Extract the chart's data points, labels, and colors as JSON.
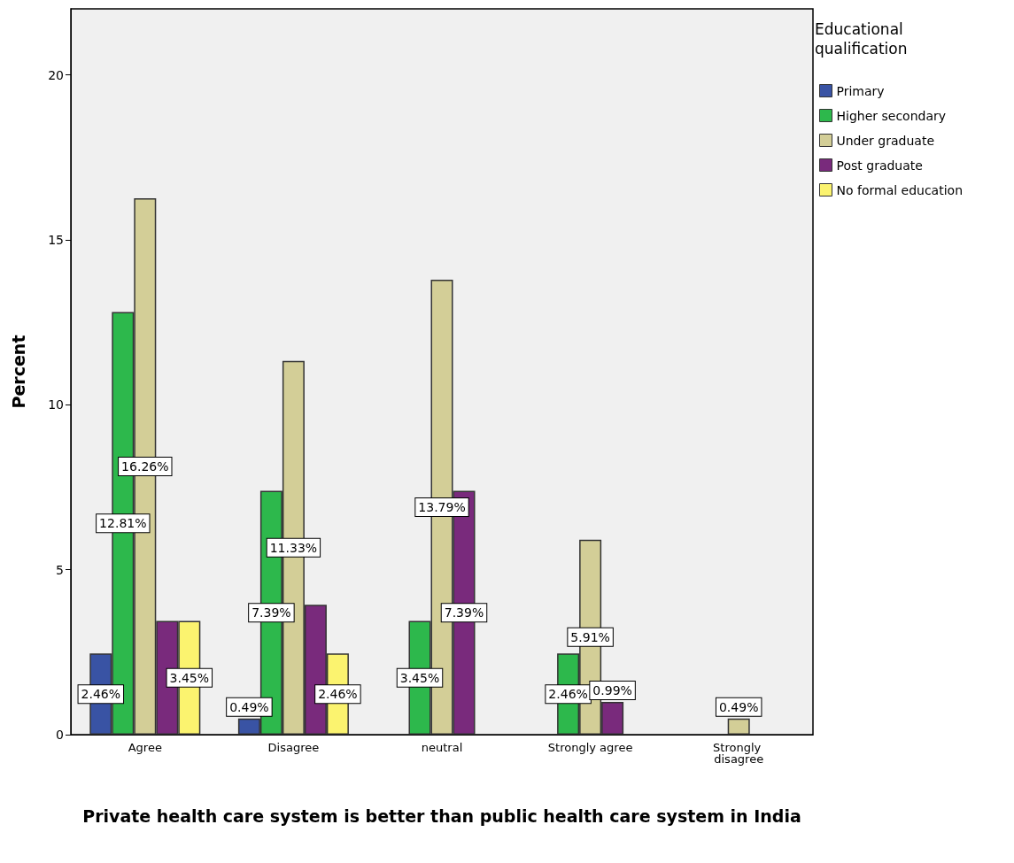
{
  "chart_data": {
    "type": "bar",
    "xlabel": "Private health care system is better than public health care system in India",
    "ylabel": "Percent",
    "legend_title": "Educational qualification",
    "categories": [
      "Agree",
      "Disagree",
      "neutral",
      "Strongly agree",
      "Strongly disagree"
    ],
    "series": [
      {
        "name": "Primary",
        "color": "#3953a4",
        "values": [
          2.46,
          0.49,
          null,
          null,
          null
        ],
        "value_labels": [
          "2.46%",
          "0.49%",
          null,
          null,
          null
        ]
      },
      {
        "name": "Higher secondary",
        "color": "#2db84c",
        "values": [
          12.81,
          7.39,
          3.45,
          2.46,
          null
        ],
        "value_labels": [
          "12.81%",
          "7.39%",
          "3.45%",
          "2.46%",
          null
        ]
      },
      {
        "name": "Under graduate",
        "color": "#d3ce97",
        "values": [
          16.26,
          11.33,
          13.79,
          5.91,
          0.49
        ],
        "value_labels": [
          "16.26%",
          "11.33%",
          "13.79%",
          "5.91%",
          "0.49%"
        ]
      },
      {
        "name": "Post graduate",
        "color": "#792a7c",
        "values": [
          3.45,
          3.94,
          7.39,
          0.99,
          null
        ],
        "value_labels": [
          null,
          null,
          "7.39%",
          "0.99%",
          null
        ]
      },
      {
        "name": "No formal education",
        "color": "#fbf36f",
        "values": [
          3.45,
          2.46,
          null,
          null,
          null
        ],
        "value_labels": [
          "3.45%",
          "2.46%",
          null,
          null,
          null
        ]
      }
    ],
    "ylim": [
      0,
      22
    ],
    "yticks": [
      0,
      5,
      10,
      15,
      20
    ],
    "grid": false,
    "legend": "top right"
  }
}
